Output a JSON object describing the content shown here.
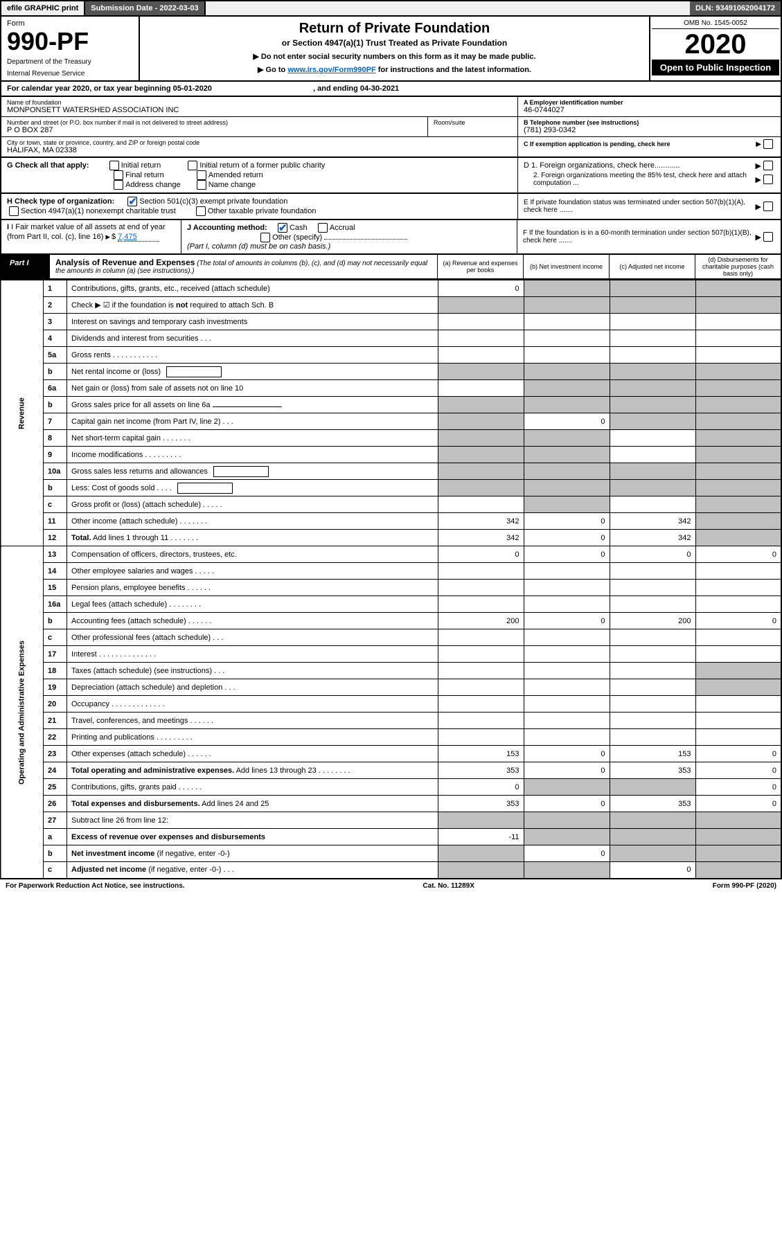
{
  "topbar": {
    "efile": "efile GRAPHIC print",
    "subdate_label": "Submission Date - ",
    "subdate": "2022-03-03",
    "dln_label": "DLN: ",
    "dln": "93491062004172"
  },
  "header": {
    "form_label": "Form",
    "form_no": "990-PF",
    "dept": "Department of the Treasury",
    "irs": "Internal Revenue Service",
    "title": "Return of Private Foundation",
    "subtitle": "or Section 4947(a)(1) Trust Treated as Private Foundation",
    "note1": "▶ Do not enter social security numbers on this form as it may be made public.",
    "note2_pre": "▶ Go to ",
    "note2_link": "www.irs.gov/Form990PF",
    "note2_post": " for instructions and the latest information.",
    "omb": "OMB No. 1545-0052",
    "year": "2020",
    "open": "Open to Public Inspection"
  },
  "calyear": {
    "text_a": "For calendar year 2020, or tax year beginning ",
    "begin": "05-01-2020",
    "text_b": ", and ending ",
    "end": "04-30-2021"
  },
  "info": {
    "name_lbl": "Name of foundation",
    "name": "MONPONSETT WATERSHED ASSOCIATION INC",
    "addr_lbl": "Number and street (or P.O. box number if mail is not delivered to street address)",
    "addr": "P O BOX 287",
    "room_lbl": "Room/suite",
    "city_lbl": "City or town, state or province, country, and ZIP or foreign postal code",
    "city": "HALIFAX, MA  02338",
    "a_lbl": "A Employer identification number",
    "a_val": "46-0744027",
    "b_lbl": "B Telephone number (see instructions)",
    "b_val": "(781) 293-0342",
    "c_lbl": "C If exemption application is pending, check here"
  },
  "g": {
    "lbl": "G Check all that apply:",
    "opts": [
      "Initial return",
      "Final return",
      "Address change",
      "Initial return of a former public charity",
      "Amended return",
      "Name change"
    ],
    "d1": "D 1. Foreign organizations, check here............",
    "d2": "2. Foreign organizations meeting the 85% test, check here and attach computation ...",
    "e": "E  If private foundation status was terminated under section 507(b)(1)(A), check here .......",
    "h_lbl": "H Check type of organization:",
    "h_1": "Section 501(c)(3) exempt private foundation",
    "h_2": "Section 4947(a)(1) nonexempt charitable trust",
    "h_3": "Other taxable private foundation",
    "i_lbl": "I Fair market value of all assets at end of year (from Part II, col. (c), line 16)",
    "i_val": "7,475",
    "j_lbl": "J Accounting method:",
    "j_cash": "Cash",
    "j_accr": "Accrual",
    "j_other": "Other (specify)",
    "j_note": "(Part I, column (d) must be on cash basis.)",
    "f": "F  If the foundation is in a 60-month termination under section 507(b)(1)(B), check here ......."
  },
  "part1": {
    "label": "Part I",
    "title": "Analysis of Revenue and Expenses",
    "title_note": " (The total of amounts in columns (b), (c), and (d) may not necessarily equal the amounts in column (a) (see instructions).)",
    "cols": {
      "a": "(a) Revenue and expenses per books",
      "b": "(b) Net investment income",
      "c": "(c) Adjusted net income",
      "d": "(d) Disbursements for charitable purposes (cash basis only)"
    }
  },
  "sidelabels": {
    "rev": "Revenue",
    "exp": "Operating and Administrative Expenses"
  },
  "rows": [
    {
      "n": "1",
      "d": "Contributions, gifts, grants, etc., received (attach schedule)",
      "a": "0",
      "bS": true,
      "cS": true,
      "dS": true
    },
    {
      "n": "2",
      "d": "Check ▶ ☑ if the foundation is <b>not</b> required to attach Sch. B",
      "allS": true,
      "noA": true
    },
    {
      "n": "3",
      "d": "Interest on savings and temporary cash investments"
    },
    {
      "n": "4",
      "d": "Dividends and interest from securities   .   .   ."
    },
    {
      "n": "5a",
      "d": "Gross rents   .   .   .   .   .   .   .   .   .   .   ."
    },
    {
      "n": "b",
      "d": "Net rental income or (loss)",
      "ibox": true,
      "allS": true,
      "noA": true
    },
    {
      "n": "6a",
      "d": "Net gain or (loss) from sale of assets not on line 10",
      "bS": true,
      "cS": true,
      "dS": true
    },
    {
      "n": "b",
      "d": "Gross sales price for all assets on line 6a",
      "uline": true,
      "allS": true,
      "noA": true
    },
    {
      "n": "7",
      "d": "Capital gain net income (from Part IV, line 2)   .   .   .",
      "aS": true,
      "b": "0",
      "cS": true,
      "dS": true
    },
    {
      "n": "8",
      "d": "Net short-term capital gain   .   .   .   .   .   .   .",
      "aS": true,
      "bS": true,
      "dS": true
    },
    {
      "n": "9",
      "d": "Income modifications   .   .   .   .   .   .   .   .   .",
      "aS": true,
      "bS": true,
      "dS": true
    },
    {
      "n": "10a",
      "d": "Gross sales less returns and allowances",
      "ibox": true,
      "allS": true,
      "noA": true
    },
    {
      "n": "b",
      "d": "Less: Cost of goods sold   .   .   .   .",
      "ibox": true,
      "allS": true,
      "noA": true
    },
    {
      "n": "c",
      "d": "Gross profit or (loss) (attach schedule)   .   .   .   .   .",
      "bS": true,
      "dS": true
    },
    {
      "n": "11",
      "d": "Other income (attach schedule)   .   .   .   .   .   .   .",
      "a": "342",
      "b": "0",
      "c": "342",
      "dS": true
    },
    {
      "n": "12",
      "d": "<b>Total.</b> Add lines 1 through 11   .   .   .   .   .   .   .",
      "a": "342",
      "b": "0",
      "c": "342",
      "dS": true
    },
    {
      "n": "13",
      "d": "Compensation of officers, directors, trustees, etc.",
      "a": "0",
      "b": "0",
      "c": "0",
      "e": "0"
    },
    {
      "n": "14",
      "d": "Other employee salaries and wages   .   .   .   .   ."
    },
    {
      "n": "15",
      "d": "Pension plans, employee benefits   .   .   .   .   .   ."
    },
    {
      "n": "16a",
      "d": "Legal fees (attach schedule)   .   .   .   .   .   .   .   ."
    },
    {
      "n": "b",
      "d": "Accounting fees (attach schedule)   .   .   .   .   .   .",
      "a": "200",
      "b": "0",
      "c": "200",
      "e": "0"
    },
    {
      "n": "c",
      "d": "Other professional fees (attach schedule)   .   .   ."
    },
    {
      "n": "17",
      "d": "Interest   .   .   .   .   .   .   .   .   .   .   .   .   .   ."
    },
    {
      "n": "18",
      "d": "Taxes (attach schedule) (see instructions)   .   .   .",
      "dS": true
    },
    {
      "n": "19",
      "d": "Depreciation (attach schedule) and depletion   .   .   .",
      "dS": true
    },
    {
      "n": "20",
      "d": "Occupancy   .   .   .   .   .   .   .   .   .   .   .   .   ."
    },
    {
      "n": "21",
      "d": "Travel, conferences, and meetings   .   .   .   .   .   ."
    },
    {
      "n": "22",
      "d": "Printing and publications   .   .   .   .   .   .   .   .   ."
    },
    {
      "n": "23",
      "d": "Other expenses (attach schedule)   .   .   .   .   .   .",
      "a": "153",
      "b": "0",
      "c": "153",
      "e": "0"
    },
    {
      "n": "24",
      "d": "<b>Total operating and administrative expenses.</b> Add lines 13 through 23   .   .   .   .   .   .   .   .",
      "a": "353",
      "b": "0",
      "c": "353",
      "e": "0"
    },
    {
      "n": "25",
      "d": "Contributions, gifts, grants paid   .   .   .   .   .   .",
      "a": "0",
      "bS": true,
      "cS": true,
      "e": "0"
    },
    {
      "n": "26",
      "d": "<b>Total expenses and disbursements.</b> Add lines 24 and 25",
      "a": "353",
      "b": "0",
      "c": "353",
      "e": "0"
    },
    {
      "n": "27",
      "d": "Subtract line 26 from line 12:",
      "allS": true,
      "noA": true
    },
    {
      "n": "a",
      "d": "<b>Excess of revenue over expenses and disbursements</b>",
      "a": "-11",
      "bS": true,
      "cS": true,
      "dS": true
    },
    {
      "n": "b",
      "d": "<b>Net investment income</b> (if negative, enter -0-)",
      "aS": true,
      "b": "0",
      "cS": true,
      "dS": true
    },
    {
      "n": "c",
      "d": "<b>Adjusted net income</b> (if negative, enter -0-)   .   .   .",
      "aS": true,
      "bS": true,
      "c": "0",
      "dS": true
    }
  ],
  "footer": {
    "left": "For Paperwork Reduction Act Notice, see instructions.",
    "mid": "Cat. No. 11289X",
    "right_a": "Form ",
    "right_b": "990-PF",
    "right_c": " (2020)"
  },
  "colors": {
    "shade": "#c0c0c0",
    "link": "#0066cc",
    "check": "#1565c0"
  }
}
